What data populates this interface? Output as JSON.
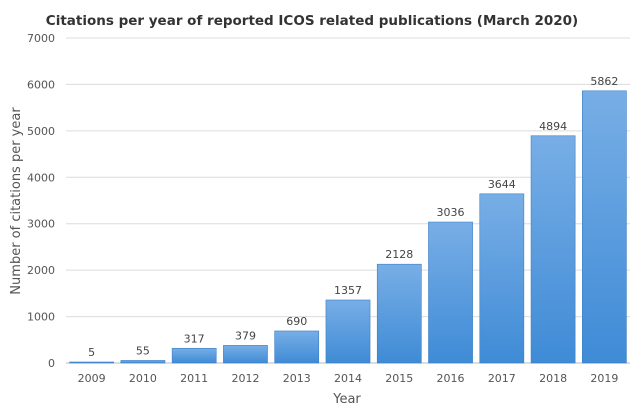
{
  "chart_data": {
    "type": "bar",
    "title": "Citations per year of reported ICOS related publications (March 2020)",
    "xlabel": "Year",
    "ylabel": "Number of citations per year",
    "categories": [
      "2009",
      "2010",
      "2011",
      "2012",
      "2013",
      "2014",
      "2015",
      "2016",
      "2017",
      "2018",
      "2019"
    ],
    "values": [
      5,
      55,
      317,
      379,
      690,
      1357,
      2128,
      3036,
      3644,
      4894,
      5862
    ],
    "ylim": [
      0,
      7000
    ],
    "yticks": [
      0,
      1000,
      2000,
      3000,
      4000,
      5000,
      6000,
      7000
    ],
    "grid": true,
    "legend": "none",
    "colors": {
      "bar_top": "#78aee6",
      "bar_bottom": "#3f8bd6",
      "bar_edge": "#3a7fc4"
    }
  }
}
